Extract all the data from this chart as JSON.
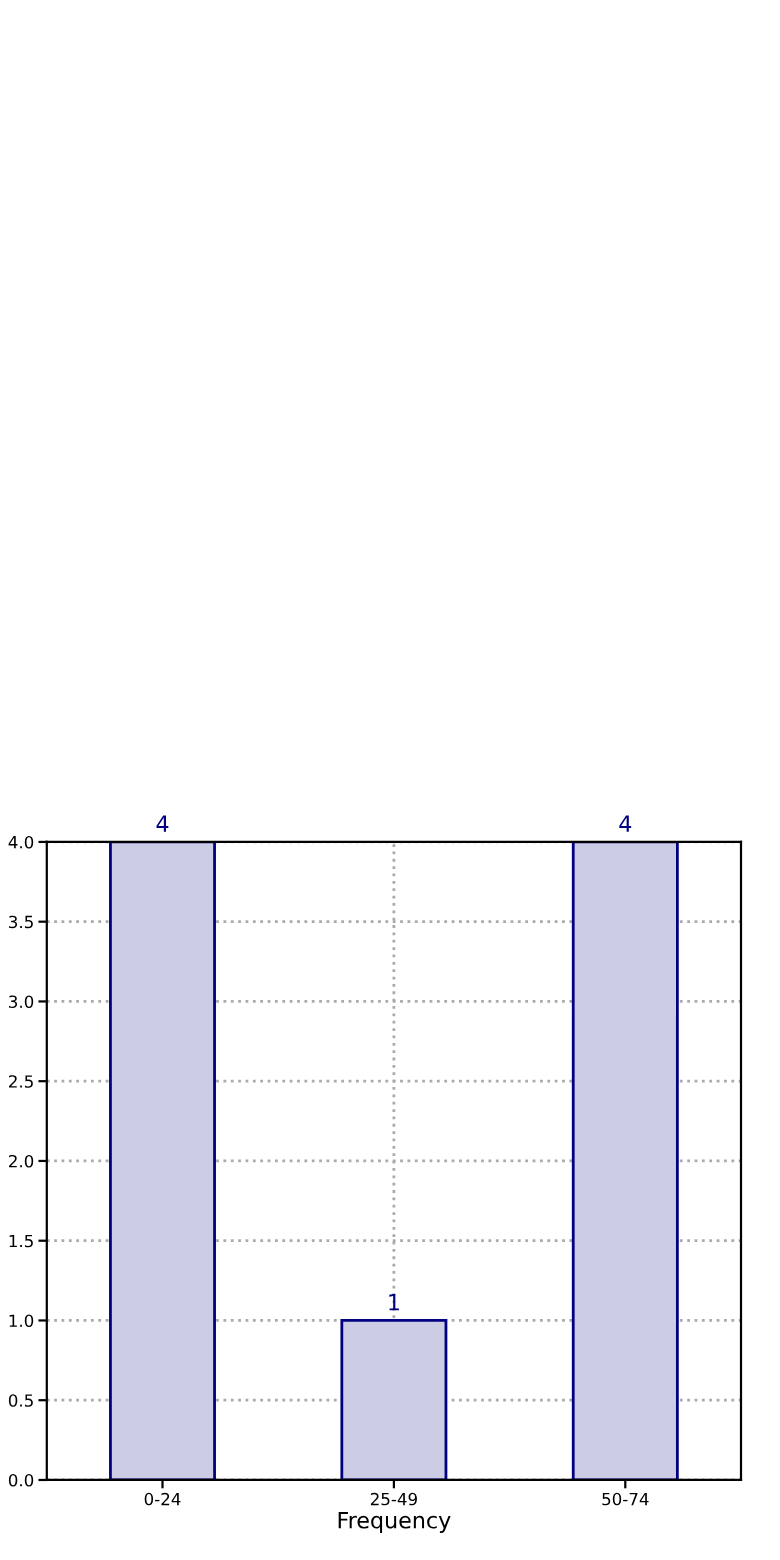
{
  "chart_data": {
    "type": "bar",
    "xlabel": "Frequency",
    "categories": [
      "0-24",
      "25-49",
      "50-74"
    ],
    "series": [
      {
        "color": "#cccce4",
        "values": [
          4,
          1,
          4
        ]
      }
    ],
    "ylim": [
      0,
      4
    ],
    "yticks": [
      {
        "value": 0,
        "label": "0.0"
      },
      0.5,
      {
        "value": 1,
        "label": "1.0"
      },
      1.5,
      {
        "value": 2,
        "label": "2.0"
      },
      2.5,
      {
        "value": 3,
        "label": "3.0"
      },
      3.5,
      {
        "value": 4,
        "label": "4.0"
      }
    ],
    "grid": true,
    "data_labels": true
  }
}
